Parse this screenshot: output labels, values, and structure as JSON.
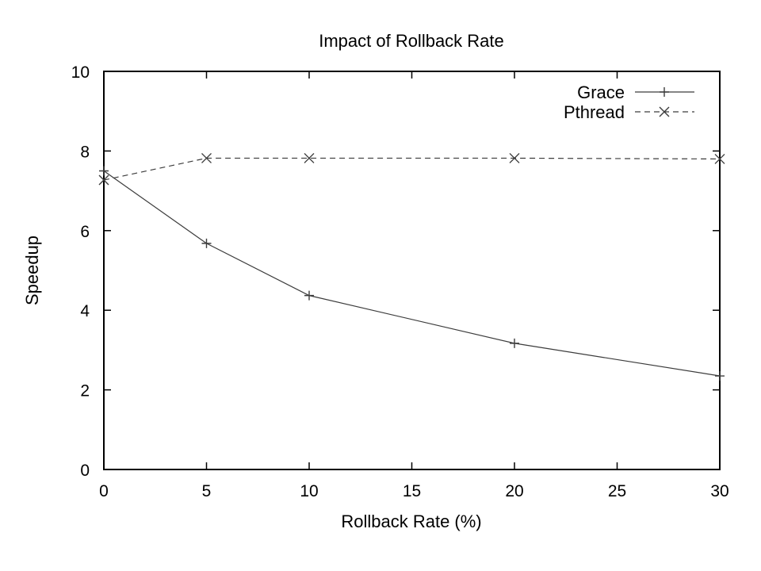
{
  "chart_data": {
    "type": "line",
    "title": "Impact of Rollback Rate",
    "xlabel": "Rollback Rate (%)",
    "ylabel": "Speedup",
    "xlim": [
      0,
      30
    ],
    "ylim": [
      0,
      10
    ],
    "xticks": [
      "0",
      "5",
      "10",
      "15",
      "20",
      "25",
      "30"
    ],
    "yticks": [
      "0",
      "2",
      "4",
      "6",
      "8",
      "10"
    ],
    "grid": false,
    "legend_position": "top-right",
    "x": [
      0,
      5,
      10,
      20,
      30
    ],
    "series": [
      {
        "name": "Grace",
        "marker": "plus",
        "dash": "solid",
        "values": [
          7.5,
          5.68,
          4.37,
          3.17,
          2.35
        ]
      },
      {
        "name": "Pthread",
        "marker": "cross",
        "dash": "dashed",
        "values": [
          7.27,
          7.82,
          7.82,
          7.82,
          7.8
        ]
      }
    ],
    "colors": {
      "line": "#3c3c3c",
      "axis": "#000000",
      "background": "#ffffff"
    }
  }
}
